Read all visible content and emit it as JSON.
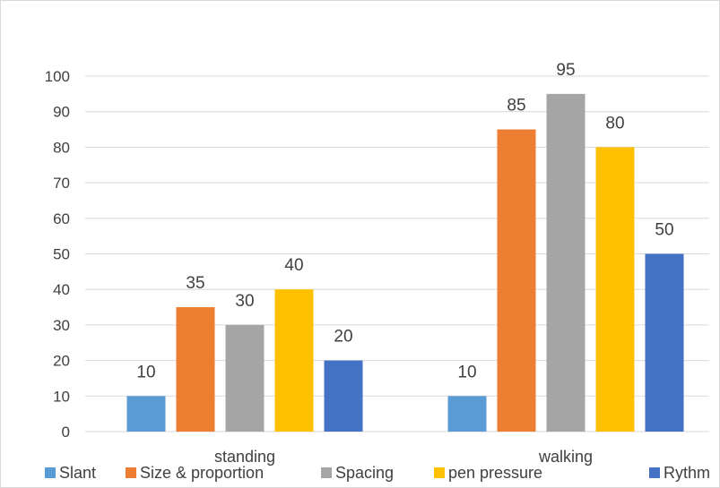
{
  "chart_data": {
    "type": "bar",
    "categories": [
      "standing",
      "walking"
    ],
    "series": [
      {
        "name": "Slant",
        "color": "#5b9bd5",
        "values": [
          10,
          10
        ]
      },
      {
        "name": "Size & proportion",
        "color": "#ed7d31",
        "values": [
          35,
          85
        ]
      },
      {
        "name": "Spacing",
        "color": "#a5a5a5",
        "values": [
          30,
          95
        ]
      },
      {
        "name": "pen pressure",
        "color": "#ffc000",
        "values": [
          40,
          80
        ]
      },
      {
        "name": "Rythm",
        "color": "#4472c4",
        "values": [
          20,
          50
        ]
      }
    ],
    "ylim": [
      0,
      100
    ],
    "yticks": [
      0,
      10,
      20,
      30,
      40,
      50,
      60,
      70,
      80,
      90,
      100
    ],
    "title": "",
    "xlabel": "",
    "ylabel": "",
    "grid": true,
    "legend_position": "bottom"
  }
}
